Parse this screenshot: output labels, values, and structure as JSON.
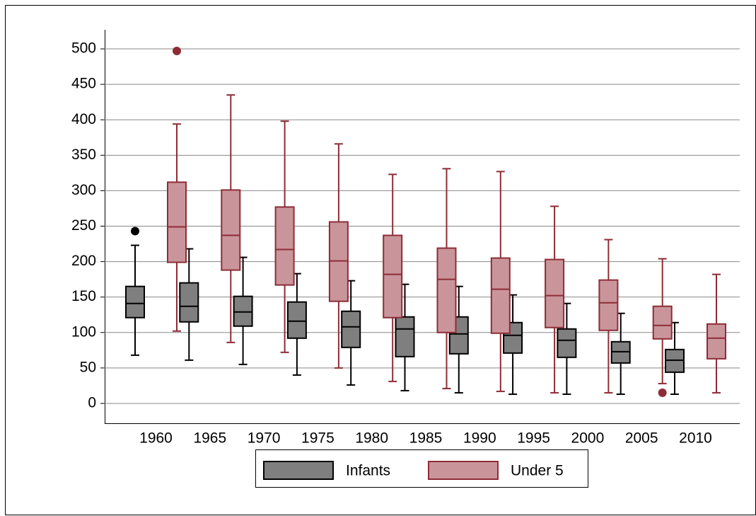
{
  "chart_data": {
    "type": "box",
    "categories": [
      "1960",
      "1965",
      "1970",
      "1975",
      "1980",
      "1985",
      "1990",
      "1995",
      "2000",
      "2005",
      "2010"
    ],
    "ylim": [
      -28,
      527
    ],
    "yticks": [
      0,
      50,
      100,
      150,
      200,
      250,
      300,
      350,
      400,
      450,
      500
    ],
    "grid": true,
    "legend": "bottom",
    "series": [
      {
        "name": "Infants",
        "color": "#7f7f7f",
        "edge_color": "#000000",
        "boxes": [
          {
            "whislo": 68,
            "q1": 121,
            "median": 141,
            "q3": 165,
            "whishi": 223,
            "outliers": [
              243
            ]
          },
          {
            "whislo": 61,
            "q1": 115,
            "median": 137,
            "q3": 170,
            "whishi": 218
          },
          {
            "whislo": 55,
            "q1": 109,
            "median": 129,
            "q3": 151,
            "whishi": 206
          },
          {
            "whislo": 40,
            "q1": 92,
            "median": 116,
            "q3": 143,
            "whishi": 183
          },
          {
            "whislo": 26,
            "q1": 79,
            "median": 108,
            "q3": 130,
            "whishi": 173
          },
          {
            "whislo": 18,
            "q1": 66,
            "median": 105,
            "q3": 122,
            "whishi": 168
          },
          {
            "whislo": 15,
            "q1": 70,
            "median": 98,
            "q3": 122,
            "whishi": 165
          },
          {
            "whislo": 13,
            "q1": 71,
            "median": 96,
            "q3": 114,
            "whishi": 153
          },
          {
            "whislo": 13,
            "q1": 65,
            "median": 89,
            "q3": 105,
            "whishi": 141
          },
          {
            "whislo": 13,
            "q1": 57,
            "median": 73,
            "q3": 87,
            "whishi": 127
          },
          {
            "whislo": 13,
            "q1": 44,
            "median": 61,
            "q3": 76,
            "whishi": 114
          }
        ]
      },
      {
        "name": "Under 5",
        "color": "#c9959b",
        "edge_color": "#8e2c36",
        "boxes": [
          {
            "whislo": 102,
            "q1": 199,
            "median": 249,
            "q3": 312,
            "whishi": 394,
            "outliers": [
              497
            ]
          },
          {
            "whislo": 86,
            "q1": 188,
            "median": 237,
            "q3": 301,
            "whishi": 435
          },
          {
            "whislo": 72,
            "q1": 167,
            "median": 217,
            "q3": 277,
            "whishi": 398
          },
          {
            "whislo": 50,
            "q1": 144,
            "median": 201,
            "q3": 256,
            "whishi": 366
          },
          {
            "whislo": 31,
            "q1": 121,
            "median": 182,
            "q3": 237,
            "whishi": 323
          },
          {
            "whislo": 21,
            "q1": 100,
            "median": 175,
            "q3": 219,
            "whishi": 331
          },
          {
            "whislo": 17,
            "q1": 99,
            "median": 161,
            "q3": 205,
            "whishi": 327
          },
          {
            "whislo": 15,
            "q1": 107,
            "median": 152,
            "q3": 203,
            "whishi": 278
          },
          {
            "whislo": 15,
            "q1": 103,
            "median": 142,
            "q3": 174,
            "whishi": 231
          },
          {
            "whislo": 28,
            "q1": 91,
            "median": 110,
            "q3": 137,
            "whishi": 204,
            "outliers": [
              15
            ]
          },
          {
            "whislo": 15,
            "q1": 63,
            "median": 92,
            "q3": 112,
            "whishi": 182
          }
        ]
      }
    ]
  }
}
